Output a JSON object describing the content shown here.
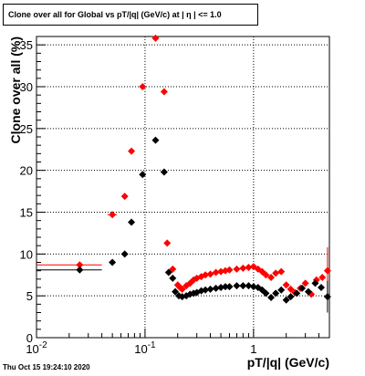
{
  "chart_data": {
    "type": "scatter",
    "title": "Clone  over all for Global vs pT/|q| (GeV/c) at |  η | <= 1.0",
    "xlabel": "pT/|q| (GeV/c)",
    "ylabel": "Clone  over all (%)",
    "x_scale": "log",
    "xlim": [
      0.01,
      5.0
    ],
    "ylim": [
      0,
      36
    ],
    "grid": true,
    "x_ticks": [
      {
        "value": 0.01,
        "label": "10",
        "exp": "-2"
      },
      {
        "value": 0.1,
        "label": "10",
        "exp": "-1"
      },
      {
        "value": 1,
        "label": "1",
        "exp": ""
      }
    ],
    "y_ticks": [
      0,
      5,
      10,
      15,
      20,
      25,
      30,
      35
    ],
    "series": [
      {
        "color": "#ff0000",
        "points": [
          {
            "x": 0.025,
            "y": 8.7,
            "xlo": 0.01,
            "xhi": 0.04
          },
          {
            "x": 0.05,
            "y": 14.7,
            "xlo": 0.045,
            "xhi": 0.055
          },
          {
            "x": 0.065,
            "y": 16.9
          },
          {
            "x": 0.075,
            "y": 22.3
          },
          {
            "x": 0.095,
            "y": 30.0
          },
          {
            "x": 0.125,
            "y": 35.8
          },
          {
            "x": 0.15,
            "y": 29.4
          },
          {
            "x": 0.16,
            "y": 11.3
          },
          {
            "x": 0.18,
            "y": 8.2
          },
          {
            "x": 0.2,
            "y": 6.3
          },
          {
            "x": 0.21,
            "y": 6.0
          },
          {
            "x": 0.22,
            "y": 5.8
          },
          {
            "x": 0.24,
            "y": 6.2
          },
          {
            "x": 0.26,
            "y": 6.5
          },
          {
            "x": 0.28,
            "y": 6.9
          },
          {
            "x": 0.3,
            "y": 7.1
          },
          {
            "x": 0.33,
            "y": 7.3
          },
          {
            "x": 0.36,
            "y": 7.5
          },
          {
            "x": 0.4,
            "y": 7.6
          },
          {
            "x": 0.45,
            "y": 7.8
          },
          {
            "x": 0.5,
            "y": 7.9
          },
          {
            "x": 0.55,
            "y": 8.0
          },
          {
            "x": 0.6,
            "y": 8.1
          },
          {
            "x": 0.7,
            "y": 8.2
          },
          {
            "x": 0.8,
            "y": 8.3
          },
          {
            "x": 0.9,
            "y": 8.4
          },
          {
            "x": 1.0,
            "y": 8.5
          },
          {
            "x": 1.1,
            "y": 8.2
          },
          {
            "x": 1.2,
            "y": 7.9
          },
          {
            "x": 1.3,
            "y": 7.5
          },
          {
            "x": 1.45,
            "y": 7.2
          },
          {
            "x": 1.6,
            "y": 7.7
          },
          {
            "x": 1.8,
            "y": 7.9
          },
          {
            "x": 2.0,
            "y": 6.3
          },
          {
            "x": 2.2,
            "y": 5.8
          },
          {
            "x": 2.4,
            "y": 5.4
          },
          {
            "x": 2.7,
            "y": 5.9
          },
          {
            "x": 3.0,
            "y": 6.5
          },
          {
            "x": 3.4,
            "y": 5.2
          },
          {
            "x": 3.8,
            "y": 6.9
          },
          {
            "x": 4.3,
            "y": 7.2
          },
          {
            "x": 4.8,
            "y": 8.0,
            "ylo": 5.0,
            "yhi": 10.8
          }
        ]
      },
      {
        "color": "#000000",
        "points": [
          {
            "x": 0.025,
            "y": 8.1,
            "xlo": 0.01,
            "xhi": 0.04
          },
          {
            "x": 0.05,
            "y": 9.0
          },
          {
            "x": 0.065,
            "y": 10.0
          },
          {
            "x": 0.075,
            "y": 13.8
          },
          {
            "x": 0.095,
            "y": 19.5
          },
          {
            "x": 0.125,
            "y": 23.6
          },
          {
            "x": 0.15,
            "y": 19.8
          },
          {
            "x": 0.165,
            "y": 7.8
          },
          {
            "x": 0.18,
            "y": 7.1
          },
          {
            "x": 0.19,
            "y": 5.5
          },
          {
            "x": 0.205,
            "y": 5.0
          },
          {
            "x": 0.22,
            "y": 4.9
          },
          {
            "x": 0.24,
            "y": 5.0
          },
          {
            "x": 0.26,
            "y": 5.2
          },
          {
            "x": 0.28,
            "y": 5.3
          },
          {
            "x": 0.3,
            "y": 5.4
          },
          {
            "x": 0.33,
            "y": 5.6
          },
          {
            "x": 0.36,
            "y": 5.7
          },
          {
            "x": 0.4,
            "y": 5.8
          },
          {
            "x": 0.45,
            "y": 5.9
          },
          {
            "x": 0.5,
            "y": 6.0
          },
          {
            "x": 0.55,
            "y": 6.1
          },
          {
            "x": 0.6,
            "y": 6.1
          },
          {
            "x": 0.7,
            "y": 6.2
          },
          {
            "x": 0.8,
            "y": 6.2
          },
          {
            "x": 0.9,
            "y": 6.2
          },
          {
            "x": 1.0,
            "y": 6.1
          },
          {
            "x": 1.1,
            "y": 6.0
          },
          {
            "x": 1.2,
            "y": 5.7
          },
          {
            "x": 1.3,
            "y": 5.3
          },
          {
            "x": 1.45,
            "y": 4.8
          },
          {
            "x": 1.6,
            "y": 5.3
          },
          {
            "x": 1.8,
            "y": 5.7
          },
          {
            "x": 2.0,
            "y": 4.5
          },
          {
            "x": 2.2,
            "y": 4.9
          },
          {
            "x": 2.5,
            "y": 5.3
          },
          {
            "x": 2.8,
            "y": 5.9
          },
          {
            "x": 3.2,
            "y": 5.5
          },
          {
            "x": 3.7,
            "y": 6.5
          },
          {
            "x": 4.2,
            "y": 6.0
          },
          {
            "x": 4.8,
            "y": 4.9,
            "ylo": 3.0,
            "yhi": 6.8
          }
        ]
      }
    ]
  },
  "footer": {
    "timestamp": "Thu Oct 15 19:24:10 2020"
  }
}
